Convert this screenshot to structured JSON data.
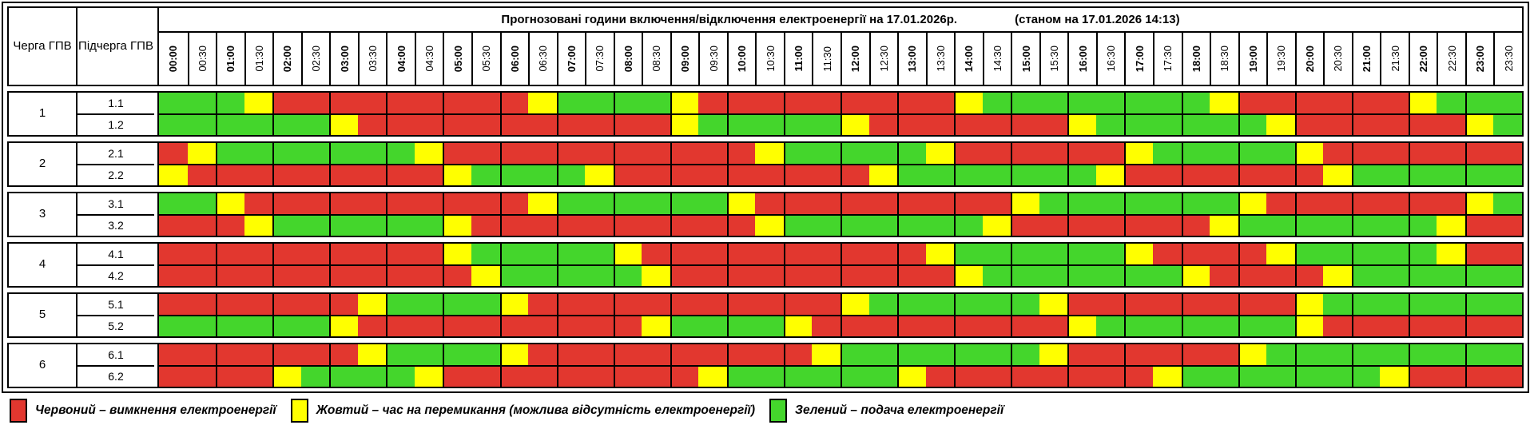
{
  "chart_data": {
    "type": "heatmap",
    "title": "Прогнозовані години включення/відключення електроенергії на 17.01.2026р.",
    "status_note": "(станом на 17.01.2026 14:13)",
    "row_header_1": "Черга ГПВ",
    "row_header_2": "Підчерга ГПВ",
    "x_tick_labels": [
      "00:00",
      "00:30",
      "01:00",
      "01:30",
      "02:00",
      "02:30",
      "03:00",
      "03:30",
      "04:00",
      "04:30",
      "05:00",
      "05:30",
      "06:00",
      "06:30",
      "07:00",
      "07:30",
      "08:00",
      "08:30",
      "09:00",
      "09:30",
      "10:00",
      "10:30",
      "11:00",
      "11:30",
      "12:00",
      "12:30",
      "13:00",
      "13:30",
      "14:00",
      "14:30",
      "15:00",
      "15:30",
      "16:00",
      "16:30",
      "17:00",
      "17:30",
      "18:00",
      "18:30",
      "19:00",
      "19:30",
      "20:00",
      "20:30",
      "21:00",
      "21:30",
      "22:00",
      "22:30",
      "23:00",
      "23:30"
    ],
    "value_codes": {
      "R": "red / outage",
      "Y": "yellow / switching",
      "G": "green / power on"
    },
    "groups": [
      {
        "queue": "1",
        "rows": [
          {
            "label": "1.1",
            "slots": "GGGYRRRRRRRRRYGGGGYRRRRRRRRRYGGGGGGGGYRRRRRRYGGG"
          },
          {
            "label": "1.2",
            "slots": "GGGGGGYRRRRRRRRRRRYGGGGGYRRRRRRRYGGGGGGYRRRRRRYG"
          }
        ]
      },
      {
        "queue": "2",
        "rows": [
          {
            "label": "2.1",
            "slots": "RYGGGGGGGYRRRRRRRRRRRYGGGGGYRRRRRRYGGGGGYRRRRRRR"
          },
          {
            "label": "2.2",
            "slots": "YRRRRRRRRRYGGGGYRRRRRRRRRYGGGGGGGYRRRRRRRYGGGGGG"
          }
        ]
      },
      {
        "queue": "3",
        "rows": [
          {
            "label": "3.1",
            "slots": "GGYRRRRRRRRRRYGGGGGGYRRRRRRRRRYGGGGGGGYRRRRRRRYG"
          },
          {
            "label": "3.2",
            "slots": "RRRYGGGGGGYRRRRRRRRRRYGGGGGGGYRRRRRRRYGGGGGGGYRR"
          }
        ]
      },
      {
        "queue": "4",
        "rows": [
          {
            "label": "4.1",
            "slots": "RRRRRRRRRRYGGGGGYRRRRRRRRRRYGGGGGGYRRRRYGGGGGYRR"
          },
          {
            "label": "4.2",
            "slots": "RRRRRRRRRRRYGGGGGYRRRRRRRRRRYGGGGGGGYRRRRYGGGGGG"
          }
        ]
      },
      {
        "queue": "5",
        "rows": [
          {
            "label": "5.1",
            "slots": "RRRRRRRYGGGGYRRRRRRRRRRRYGGGGGGYRRRRRRRRYGGGGGGG"
          },
          {
            "label": "5.2",
            "slots": "GGGGGGYRRRRRRRRRRYGGGGYRRRRRRRRRYGGGGGGGYRRRRRRR"
          }
        ]
      },
      {
        "queue": "6",
        "rows": [
          {
            "label": "6.1",
            "slots": "RRRRRRRYGGGGYRRRRRRRRRRYGGGGGGGYRRRRRRYGGGGGGGGG"
          },
          {
            "label": "6.2",
            "slots": "RRRRYGGGGYRRRRRRRRRYGGGGGGYRRRRRRRRYGGGGGGGYRRRR"
          }
        ]
      }
    ],
    "legend": [
      {
        "key": "R",
        "label": "Червоний – вимкнення електроенергії"
      },
      {
        "key": "Y",
        "label": "Жовтий – час на перемикання (можлива відсутність електроенергії)"
      },
      {
        "key": "G",
        "label": "Зелений – подача електроенергії"
      }
    ],
    "colors": {
      "R": "#e2372f",
      "Y": "#ffff00",
      "G": "#44d62c"
    }
  }
}
